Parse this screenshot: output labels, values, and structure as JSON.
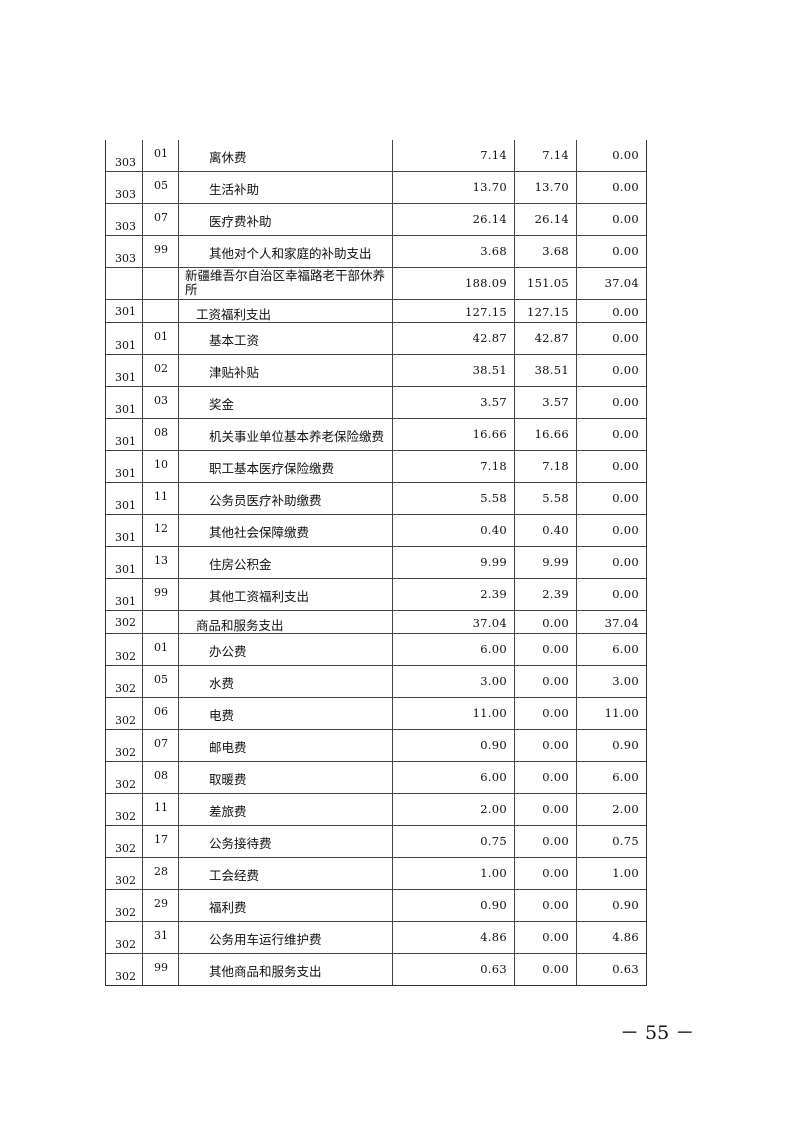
{
  "rows": [
    {
      "code": "303",
      "sub": "01",
      "desc": "离休费",
      "total": "7.14",
      "basic": "7.14",
      "project": "0.00"
    },
    {
      "code": "303",
      "sub": "05",
      "desc": "生活补助",
      "total": "13.70",
      "basic": "13.70",
      "project": "0.00"
    },
    {
      "code": "303",
      "sub": "07",
      "desc": "医疗费补助",
      "total": "26.14",
      "basic": "26.14",
      "project": "0.00"
    },
    {
      "code": "303",
      "sub": "99",
      "desc": "其他对个人和家庭的补助支出",
      "total": "3.68",
      "basic": "3.68",
      "project": "0.00"
    },
    {
      "code": "",
      "sub": "",
      "desc": "新疆维吾尔自治区幸福路老干部休养所",
      "total": "188.09",
      "basic": "151.05",
      "project": "37.04"
    },
    {
      "code": "301",
      "sub": "",
      "desc": "工资福利支出",
      "total": "127.15",
      "basic": "127.15",
      "project": "0.00"
    },
    {
      "code": "301",
      "sub": "01",
      "desc": "基本工资",
      "total": "42.87",
      "basic": "42.87",
      "project": "0.00"
    },
    {
      "code": "301",
      "sub": "02",
      "desc": "津贴补贴",
      "total": "38.51",
      "basic": "38.51",
      "project": "0.00"
    },
    {
      "code": "301",
      "sub": "03",
      "desc": "奖金",
      "total": "3.57",
      "basic": "3.57",
      "project": "0.00"
    },
    {
      "code": "301",
      "sub": "08",
      "desc": "机关事业单位基本养老保险缴费",
      "total": "16.66",
      "basic": "16.66",
      "project": "0.00"
    },
    {
      "code": "301",
      "sub": "10",
      "desc": "职工基本医疗保险缴费",
      "total": "7.18",
      "basic": "7.18",
      "project": "0.00"
    },
    {
      "code": "301",
      "sub": "11",
      "desc": "公务员医疗补助缴费",
      "total": "5.58",
      "basic": "5.58",
      "project": "0.00"
    },
    {
      "code": "301",
      "sub": "12",
      "desc": "其他社会保障缴费",
      "total": "0.40",
      "basic": "0.40",
      "project": "0.00"
    },
    {
      "code": "301",
      "sub": "13",
      "desc": "住房公积金",
      "total": "9.99",
      "basic": "9.99",
      "project": "0.00"
    },
    {
      "code": "301",
      "sub": "99",
      "desc": "其他工资福利支出",
      "total": "2.39",
      "basic": "2.39",
      "project": "0.00"
    },
    {
      "code": "302",
      "sub": "",
      "desc": "商品和服务支出",
      "total": "37.04",
      "basic": "0.00",
      "project": "37.04"
    },
    {
      "code": "302",
      "sub": "01",
      "desc": "办公费",
      "total": "6.00",
      "basic": "0.00",
      "project": "6.00"
    },
    {
      "code": "302",
      "sub": "05",
      "desc": "水费",
      "total": "3.00",
      "basic": "0.00",
      "project": "3.00"
    },
    {
      "code": "302",
      "sub": "06",
      "desc": "电费",
      "total": "11.00",
      "basic": "0.00",
      "project": "11.00"
    },
    {
      "code": "302",
      "sub": "07",
      "desc": "邮电费",
      "total": "0.90",
      "basic": "0.00",
      "project": "0.90"
    },
    {
      "code": "302",
      "sub": "08",
      "desc": "取暖费",
      "total": "6.00",
      "basic": "0.00",
      "project": "6.00"
    },
    {
      "code": "302",
      "sub": "11",
      "desc": "差旅费",
      "total": "2.00",
      "basic": "0.00",
      "project": "2.00"
    },
    {
      "code": "302",
      "sub": "17",
      "desc": "公务接待费",
      "total": "0.75",
      "basic": "0.00",
      "project": "0.75"
    },
    {
      "code": "302",
      "sub": "28",
      "desc": "工会经费",
      "total": "1.00",
      "basic": "0.00",
      "project": "1.00"
    },
    {
      "code": "302",
      "sub": "29",
      "desc": "福利费",
      "total": "0.90",
      "basic": "0.00",
      "project": "0.90"
    },
    {
      "code": "302",
      "sub": "31",
      "desc": "公务用车运行维护费",
      "total": "4.86",
      "basic": "0.00",
      "project": "4.86"
    },
    {
      "code": "302",
      "sub": "99",
      "desc": "其他商品和服务支出",
      "total": "0.63",
      "basic": "0.00",
      "project": "0.63"
    }
  ],
  "page_number": "－ 55 －"
}
